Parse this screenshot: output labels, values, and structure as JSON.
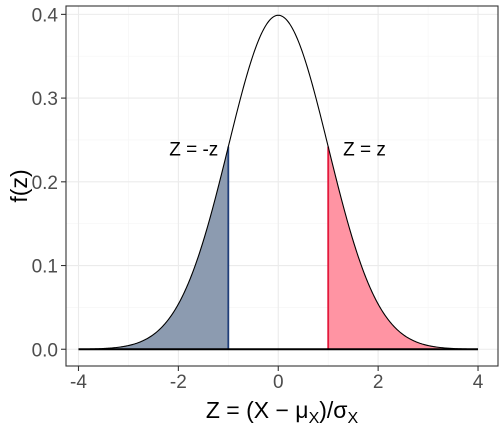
{
  "chart_data": {
    "type": "area",
    "curve": "standard-normal-density",
    "title": "",
    "xlabel_parts": [
      "Z = (X − μ",
      "X",
      ")/σ",
      "X"
    ],
    "ylabel": "f(z)",
    "xlim": [
      -4.25,
      4.4
    ],
    "ylim": [
      -0.02,
      0.41
    ],
    "x_ticks": [
      -4,
      -2,
      0,
      2,
      4
    ],
    "x_tick_labels": [
      "-4",
      "-2",
      "0",
      "2",
      "4"
    ],
    "y_ticks": [
      0.0,
      0.1,
      0.2,
      0.3,
      0.4
    ],
    "y_tick_labels": [
      "0.0",
      "0.1",
      "0.2",
      "0.3",
      "0.4"
    ],
    "x_range": [
      -4,
      4
    ],
    "shaded_regions": [
      {
        "from": -4,
        "to": -1,
        "fill": "#8c9bb0",
        "edge": "#1f3e7a"
      },
      {
        "from": 1,
        "to": 4,
        "fill": "#ff94a3",
        "edge": "#e3193c"
      }
    ],
    "cutoffs": [
      -1,
      1
    ],
    "annotations": [
      {
        "text": "Z = -z",
        "x": -1.2,
        "y": 0.24,
        "anchor": "end"
      },
      {
        "text": "Z = z",
        "x": 1.3,
        "y": 0.24,
        "anchor": "start"
      }
    ],
    "grid": true,
    "legend": "none"
  }
}
